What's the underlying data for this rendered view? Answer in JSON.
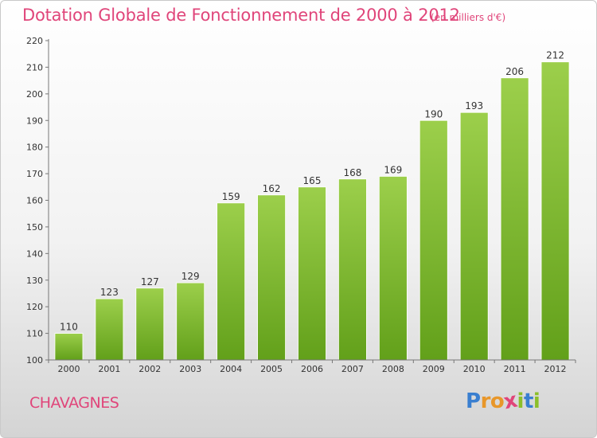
{
  "chart_data": {
    "type": "bar",
    "title": "Dotation Globale de Fonctionnement de 2000 à 2012",
    "subtitle": "(en milliers d'€)",
    "categories": [
      "2000",
      "2001",
      "2002",
      "2003",
      "2004",
      "2005",
      "2006",
      "2007",
      "2008",
      "2009",
      "2010",
      "2011",
      "2012"
    ],
    "values": [
      110,
      123,
      127,
      129,
      159,
      162,
      165,
      168,
      169,
      190,
      193,
      206,
      212
    ],
    "xlabel": "",
    "ylabel": "",
    "ylim": [
      100,
      220
    ],
    "yticks": [
      100,
      110,
      120,
      130,
      140,
      150,
      160,
      170,
      180,
      190,
      200,
      210,
      220
    ],
    "grid": false
  },
  "footer": {
    "commune": "CHAVAGNES"
  },
  "logo": {
    "letters": [
      "P",
      "r",
      "o",
      "x",
      "i",
      "t",
      "i"
    ],
    "colors": [
      "#3a7fd0",
      "#e8972a",
      "#e8972a",
      "#e0457a",
      "#8cbf2a",
      "#3a7fd0",
      "#8cbf2a"
    ]
  },
  "colors": {
    "bar_top": "#9ccf4b",
    "bar_bottom": "#62a01a",
    "accent": "#e0457a"
  }
}
